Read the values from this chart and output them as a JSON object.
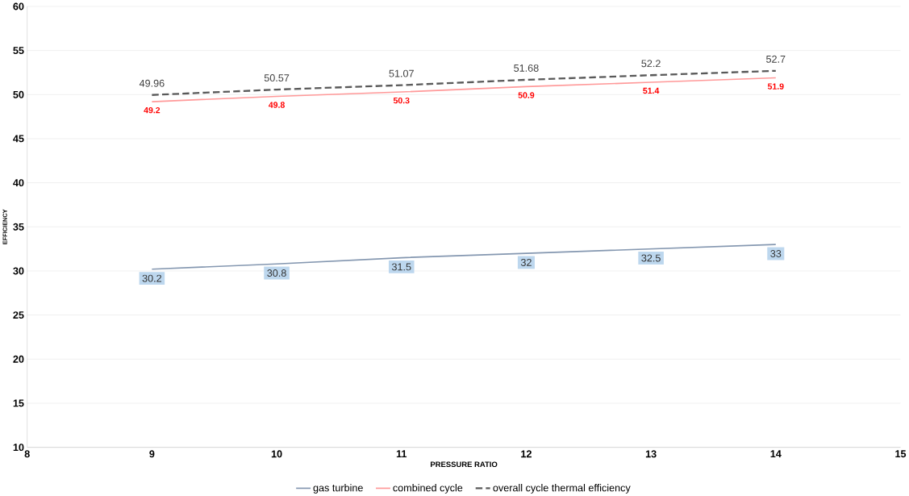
{
  "chart_data": {
    "type": "line",
    "xlabel": "PRESSURE RATIO",
    "ylabel": "EFFICIENCY",
    "x": [
      9,
      10,
      11,
      12,
      13,
      14
    ],
    "series": [
      {
        "name": "gas turbine",
        "color": "#8497b0",
        "line_style": "solid",
        "values": [
          30.2,
          30.8,
          31.5,
          32,
          32.5,
          33
        ]
      },
      {
        "name": "combined cycle",
        "color": "#ff9999",
        "line_style": "solid",
        "values": [
          49.2,
          49.8,
          50.3,
          50.9,
          51.4,
          51.9
        ]
      },
      {
        "name": "overall cycle thermal efficiency",
        "color": "#595959",
        "line_style": "dashed",
        "values": [
          49.96,
          50.57,
          51.07,
          51.68,
          52.2,
          52.7
        ]
      }
    ],
    "xlim": [
      8,
      15
    ],
    "xticks": [
      8,
      9,
      10,
      11,
      12,
      13,
      14,
      15
    ],
    "ylim": [
      10,
      60
    ],
    "yticks": [
      10,
      15,
      20,
      25,
      30,
      35,
      40,
      45,
      50,
      55,
      60
    ],
    "grid": "y",
    "legend": "bottom",
    "marker": "none",
    "data_labels": true
  }
}
